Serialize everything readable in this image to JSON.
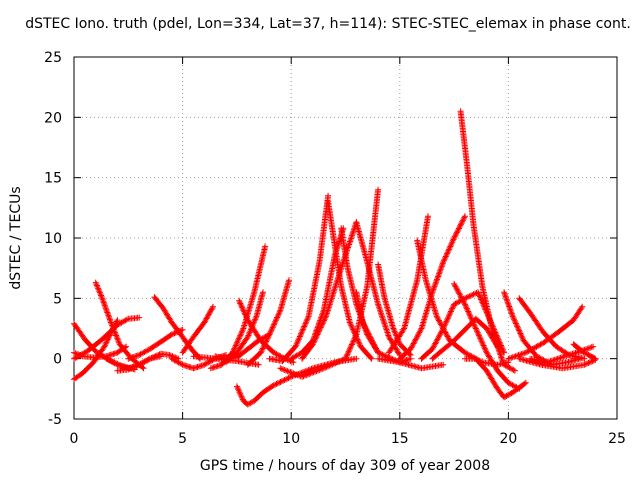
{
  "chart_data": {
    "type": "scatter",
    "title": "dSTEC Iono. truth (pdel, Lon=334, Lat=37, h=114): STEC-STEC_elemax in phase cont.",
    "xlabel": "GPS time / hours of day 309 of year 2008",
    "ylabel": "dSTEC  / TECUs",
    "xlim": [
      0,
      25
    ],
    "ylim": [
      -5,
      25
    ],
    "xticks": [
      0,
      5,
      10,
      15,
      20,
      25
    ],
    "yticks": [
      -5,
      0,
      5,
      10,
      15,
      20,
      25
    ],
    "grid": true,
    "marker": "plus",
    "color": "#ff0000",
    "series": [
      {
        "x": [
          0.0,
          0.4,
          0.9,
          1.4,
          1.8,
          2.0
        ],
        "y": [
          -1.7,
          -1.2,
          -0.3,
          1.0,
          2.5,
          3.2
        ]
      },
      {
        "x": [
          0.0,
          0.5,
          1.0,
          1.6,
          2.2,
          2.8
        ],
        "y": [
          2.9,
          1.6,
          0.6,
          -0.1,
          -0.6,
          -0.9
        ]
      },
      {
        "x": [
          0.0,
          0.6,
          1.3,
          2.0,
          2.5,
          3.0
        ],
        "y": [
          0.0,
          0.6,
          1.6,
          2.8,
          3.3,
          3.4
        ]
      },
      {
        "x": [
          0.0,
          0.4,
          0.9,
          1.5,
          2.0,
          2.4
        ],
        "y": [
          0.5,
          0.2,
          0.1,
          0.2,
          0.5,
          1.0
        ]
      },
      {
        "x": [
          1.0,
          1.3,
          1.7,
          2.1,
          2.6,
          3.2
        ],
        "y": [
          6.3,
          5.0,
          3.0,
          1.2,
          0.1,
          -0.8
        ]
      },
      {
        "x": [
          1.5,
          2.0,
          2.5,
          3.0,
          3.5,
          4.0
        ],
        "y": [
          0.0,
          -0.5,
          -0.8,
          -0.5,
          0.0,
          0.2
        ]
      },
      {
        "x": [
          2.0,
          2.5,
          3.0,
          3.5,
          4.0,
          4.4,
          4.8
        ],
        "y": [
          -1.0,
          -0.9,
          -0.5,
          0.0,
          0.4,
          0.3,
          0.0
        ]
      },
      {
        "x": [
          2.5,
          3.0,
          3.5,
          4.0,
          4.5,
          5.0
        ],
        "y": [
          0.0,
          0.3,
          0.8,
          1.4,
          2.0,
          2.4
        ]
      },
      {
        "x": [
          3.7,
          4.1,
          4.5,
          5.0,
          5.4,
          5.8
        ],
        "y": [
          5.1,
          4.2,
          3.0,
          1.8,
          0.8,
          0.0
        ]
      },
      {
        "x": [
          4.5,
          5.0,
          5.5,
          6.0,
          6.5,
          7.0
        ],
        "y": [
          0.0,
          -0.5,
          -0.8,
          -0.5,
          0.0,
          0.3
        ]
      },
      {
        "x": [
          5.0,
          5.5,
          6.0,
          6.4
        ],
        "y": [
          0.5,
          1.8,
          3.0,
          4.3
        ]
      },
      {
        "x": [
          5.5,
          6.5,
          7.5,
          8.5
        ],
        "y": [
          0.2,
          0.0,
          -0.2,
          -0.5
        ]
      },
      {
        "x": [
          6.5,
          7.0,
          7.5,
          8.0,
          8.5,
          9.0
        ],
        "y": [
          0.2,
          0.0,
          0.1,
          0.8,
          1.5,
          2.0
        ]
      },
      {
        "x": [
          7.5,
          7.8,
          8.0,
          8.3,
          8.7,
          9.2,
          10.0,
          11.0,
          12.0,
          13.0
        ],
        "y": [
          -2.3,
          -3.5,
          -3.8,
          -3.5,
          -2.8,
          -2.2,
          -1.5,
          -0.8,
          -0.3,
          0.0
        ]
      },
      {
        "x": [
          6.3,
          6.8,
          7.3,
          7.8,
          8.3,
          8.8
        ],
        "y": [
          -0.8,
          -0.5,
          0.5,
          2.5,
          5.5,
          9.3
        ]
      },
      {
        "x": [
          7.0,
          7.5,
          8.0,
          8.4,
          8.7
        ],
        "y": [
          -0.3,
          0.5,
          1.8,
          3.5,
          5.5
        ]
      },
      {
        "x": [
          7.6,
          8.0,
          8.6,
          9.2,
          9.7,
          10.1
        ],
        "y": [
          4.8,
          3.2,
          1.5,
          0.5,
          0.0,
          -0.3
        ]
      },
      {
        "x": [
          8.0,
          8.6,
          9.0,
          9.5,
          9.9
        ],
        "y": [
          -0.5,
          0.5,
          2.0,
          4.0,
          6.5
        ]
      },
      {
        "x": [
          9.0,
          9.6,
          10.2,
          10.8,
          11.3,
          11.7
        ],
        "y": [
          0.0,
          -0.2,
          1.0,
          3.5,
          8.0,
          13.5
        ]
      },
      {
        "x": [
          9.5,
          10.5,
          11.5,
          12.5
        ],
        "y": [
          -0.8,
          -1.5,
          -0.8,
          0.0
        ]
      },
      {
        "x": [
          10.0,
          10.5,
          11.0,
          11.5,
          12.0,
          12.4
        ],
        "y": [
          0.0,
          0.5,
          1.5,
          4.0,
          8.5,
          10.8
        ]
      },
      {
        "x": [
          10.5,
          11.0,
          11.6,
          12.3,
          13.0
        ],
        "y": [
          0.0,
          1.2,
          3.5,
          7.5,
          11.3
        ]
      },
      {
        "x": [
          11.7,
          12.0,
          12.3,
          12.7,
          13.2,
          13.7
        ],
        "y": [
          13.0,
          9.5,
          6.0,
          3.0,
          1.0,
          0.0
        ]
      },
      {
        "x": [
          12.3,
          12.6,
          13.0,
          13.5,
          14.0
        ],
        "y": [
          10.8,
          7.5,
          4.5,
          2.0,
          0.5
        ]
      },
      {
        "x": [
          12.5,
          13.0,
          13.5,
          14.0
        ],
        "y": [
          0.0,
          2.0,
          6.0,
          14.0
        ]
      },
      {
        "x": [
          13.0,
          13.5,
          14.0,
          14.5,
          15.0
        ],
        "y": [
          11.3,
          8.0,
          4.5,
          1.8,
          0.3
        ]
      },
      {
        "x": [
          13.0,
          13.3,
          14.0,
          15.0,
          15.5
        ],
        "y": [
          5.5,
          3.0,
          0.5,
          -0.3,
          0.0
        ]
      },
      {
        "x": [
          14.0,
          14.3,
          14.7,
          15.0,
          15.5
        ],
        "y": [
          7.8,
          5.0,
          2.5,
          1.2,
          0.3
        ]
      },
      {
        "x": [
          14.0,
          15.0,
          16.0,
          17.0
        ],
        "y": [
          0.0,
          -0.3,
          -0.8,
          -0.5
        ]
      },
      {
        "x": [
          14.5,
          15.2,
          15.8,
          16.3
        ],
        "y": [
          0.5,
          2.5,
          6.5,
          11.8
        ]
      },
      {
        "x": [
          15.0,
          15.5,
          16.0,
          16.5,
          17.0,
          17.5,
          18.0
        ],
        "y": [
          0.0,
          0.8,
          2.5,
          5.5,
          8.0,
          10.0,
          11.8
        ]
      },
      {
        "x": [
          15.8,
          16.2,
          16.7,
          17.3,
          18.0,
          18.8,
          19.5,
          20.0
        ],
        "y": [
          9.8,
          6.5,
          3.5,
          1.5,
          0.5,
          -0.3,
          -0.5,
          -0.3
        ]
      },
      {
        "x": [
          16.0,
          16.5,
          17.0,
          17.5,
          18.0,
          18.6,
          19.2,
          19.8
        ],
        "y": [
          0.0,
          0.8,
          2.5,
          4.5,
          5.0,
          5.5,
          3.0,
          0.5
        ]
      },
      {
        "x": [
          17.5,
          18.0,
          18.5,
          19.0,
          19.5,
          20.0,
          20.5
        ],
        "y": [
          6.2,
          4.5,
          2.5,
          0.5,
          -1.0,
          -2.0,
          -2.5
        ]
      },
      {
        "x": [
          17.8,
          18.1,
          18.4,
          18.8,
          19.3,
          19.8,
          20.3
        ],
        "y": [
          20.5,
          16.0,
          11.0,
          6.0,
          2.0,
          -0.5,
          -1.0
        ]
      },
      {
        "x": [
          18.0,
          18.5,
          19.0,
          19.5,
          19.8,
          20.2,
          20.8
        ],
        "y": [
          0.0,
          0.0,
          -1.0,
          -2.5,
          -3.2,
          -2.8,
          -2.0
        ]
      },
      {
        "x": [
          16.5,
          17.5,
          18.5,
          19.0,
          19.5
        ],
        "y": [
          0.0,
          1.5,
          3.3,
          2.5,
          1.0
        ]
      },
      {
        "x": [
          19.8,
          20.2,
          20.7,
          21.3,
          22.0,
          22.7,
          23.3
        ],
        "y": [
          5.5,
          3.5,
          1.5,
          0.2,
          -0.5,
          -0.3,
          0.0
        ]
      },
      {
        "x": [
          20.5,
          21.0,
          21.6,
          22.2,
          22.8,
          23.5
        ],
        "y": [
          5.0,
          3.8,
          2.2,
          1.0,
          0.3,
          0.0
        ]
      },
      {
        "x": [
          20.0,
          20.8,
          21.6,
          22.3,
          23.0,
          23.4
        ],
        "y": [
          0.0,
          0.5,
          1.3,
          2.2,
          3.2,
          4.3
        ]
      },
      {
        "x": [
          20.5,
          21.5,
          22.5,
          23.5,
          24.0
        ],
        "y": [
          0.0,
          -0.5,
          -0.8,
          -0.5,
          -0.1
        ]
      },
      {
        "x": [
          21.0,
          21.8,
          22.6,
          23.3,
          23.9
        ],
        "y": [
          0.0,
          -0.3,
          0.2,
          0.6,
          1.0
        ]
      },
      {
        "x": [
          23.0,
          23.4,
          23.8,
          24.0
        ],
        "y": [
          1.2,
          0.6,
          0.2,
          0.0
        ]
      }
    ]
  }
}
